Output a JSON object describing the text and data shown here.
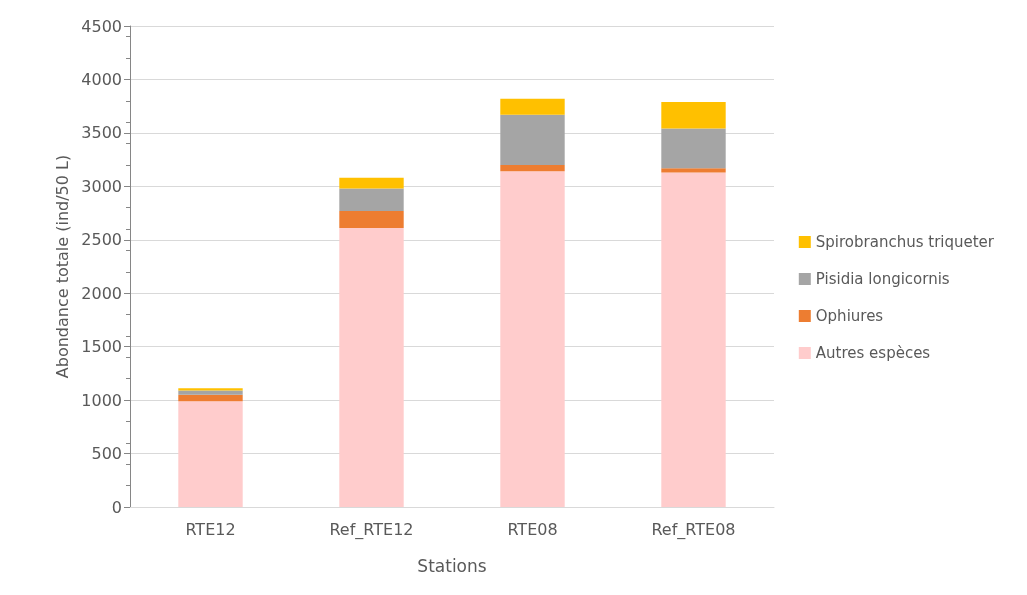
{
  "chart_data": {
    "type": "bar",
    "stacked": true,
    "xlabel": "Stations",
    "ylabel": "Abondance totale (ind/50 L)",
    "categories": [
      "RTE12",
      "Ref_RTE12",
      "RTE08",
      "Ref_RTE08"
    ],
    "series": [
      {
        "name": "Autres espèces",
        "color": "#ffcccc",
        "values": [
          990,
          2610,
          3140,
          3130
        ]
      },
      {
        "name": "Ophiures",
        "color": "#ed7d31",
        "values": [
          60,
          160,
          60,
          40
        ]
      },
      {
        "name": "Pisidia longicornis",
        "color": "#a5a5a5",
        "values": [
          40,
          210,
          470,
          370
        ]
      },
      {
        "name": "Spirobranchus triqueter",
        "color": "#ffc000",
        "values": [
          20,
          100,
          150,
          250
        ]
      }
    ],
    "ylim": [
      0,
      4500
    ],
    "yticks": [
      0,
      500,
      1000,
      1500,
      2000,
      2500,
      3000,
      3500,
      4000,
      4500
    ],
    "grid": "y",
    "legend": "right"
  }
}
